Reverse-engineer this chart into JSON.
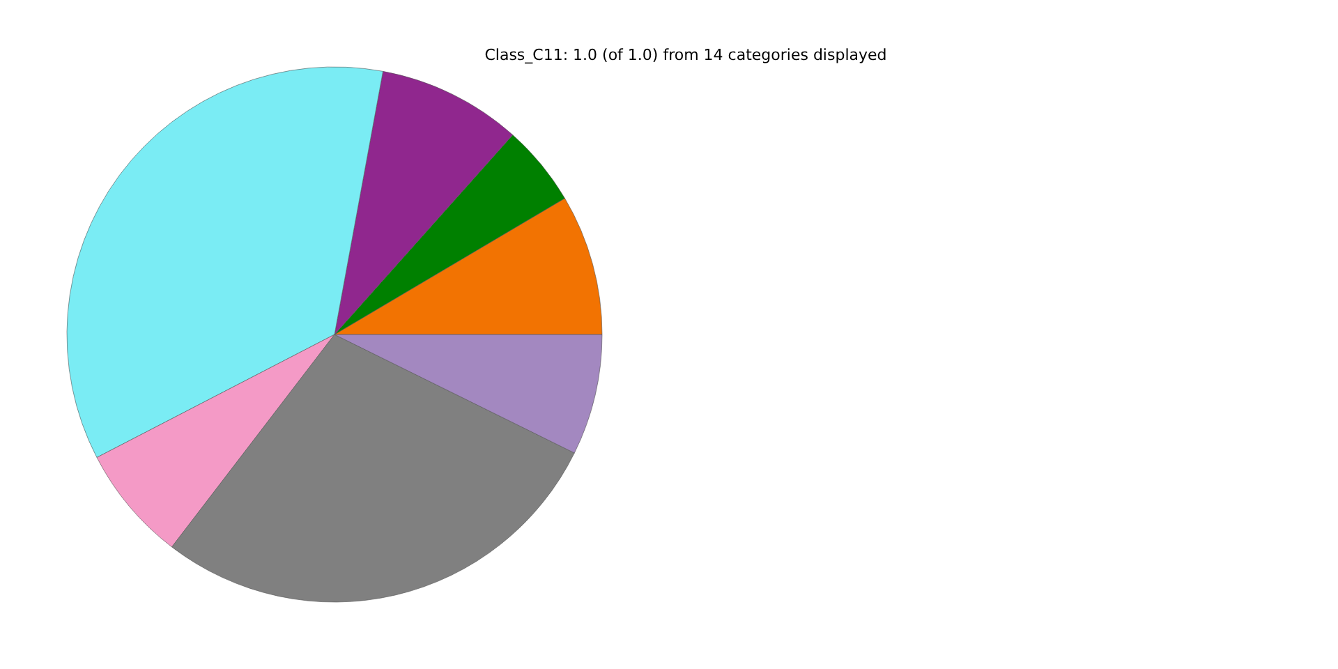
{
  "chart_data": {
    "type": "pie",
    "title": "Class_C11: 1.0 (of 1.0) from 14 categories displayed",
    "categories": [
      null,
      null,
      null,
      null,
      null,
      null,
      null
    ],
    "values": [
      8.5,
      4.9,
      8.7,
      35.5,
      7.0,
      28.1,
      7.3
    ],
    "colors": [
      "#f27302",
      "#008000",
      "#90278e",
      "#7aecf4",
      "#f49ac6",
      "#808080",
      "#a388c0"
    ]
  }
}
